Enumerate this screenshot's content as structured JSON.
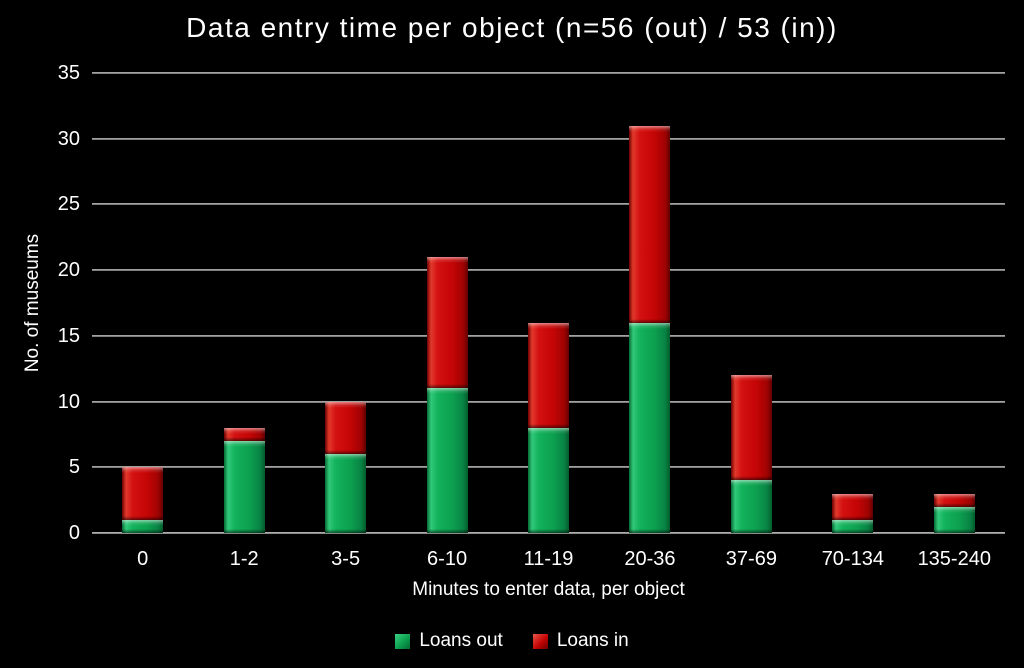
{
  "chart_data": {
    "type": "bar",
    "stacked": true,
    "title": "Data entry time per object (n=56 (out) / 53 (in))",
    "categories": [
      "0",
      "1-2",
      "3-5",
      "6-10",
      "11-19",
      "20-36",
      "37-69",
      "70-134",
      "135-240"
    ],
    "series": [
      {
        "name": "Loans out",
        "color": "#0ca04f",
        "values": [
          1,
          7,
          6,
          11,
          8,
          16,
          4,
          1,
          2
        ]
      },
      {
        "name": "Loans in",
        "color": "#c40505",
        "values": [
          4,
          1,
          4,
          10,
          8,
          15,
          8,
          2,
          1
        ]
      }
    ],
    "totals": [
      5,
      8,
      10,
      21,
      16,
      31,
      12,
      3,
      3
    ],
    "xlabel": "Minutes to enter data, per object",
    "ylabel": "No. of museums",
    "ylim": [
      0,
      35
    ],
    "yticks": [
      0,
      5,
      10,
      15,
      20,
      25,
      30,
      35
    ],
    "grid": true,
    "legend_position": "bottom",
    "colors": {
      "background": "#000000",
      "text": "#ffffff",
      "gridline": "#9b9b9b"
    }
  }
}
